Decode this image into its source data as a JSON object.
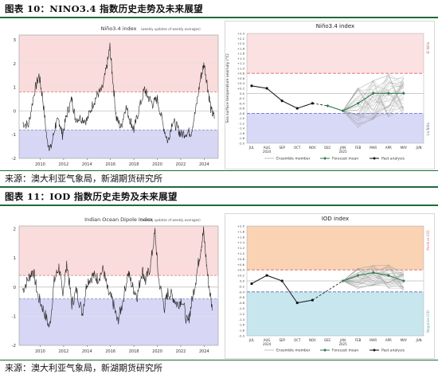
{
  "figures": [
    {
      "caption": "图表 10：NINO3.4 指数历史走势及未来展望",
      "source": "来源：澳大利亚气象局，新湖期货研究所",
      "left_chart": {
        "title": "Niño3.4 index",
        "subtitle": "(weekly updates of weekly averages)",
        "yticks": [
          "3",
          "2",
          "1",
          "0",
          "-1",
          "-2"
        ],
        "xticks": [
          "2010",
          "2012",
          "2014",
          "2016",
          "2018",
          "2020",
          "2022",
          "2024"
        ]
      },
      "right_chart": {
        "title": "Niño3.4 index",
        "ylabel": "Sea surface temperature anomaly (°C)",
        "yticks": [
          "+2.4",
          "+2.2",
          "+2.0",
          "+1.8",
          "+1.6",
          "+1.4",
          "+1.2",
          "+1.0",
          "+0.8",
          "+0.6",
          "+0.4",
          "+0.2",
          "0.0",
          "-0.2",
          "-0.4",
          "-0.6",
          "-0.8",
          "-1.0",
          "-1.2",
          "-1.4",
          "-1.6",
          "-1.8",
          "-2.0"
        ],
        "xticks": [
          "JUL",
          "AUG",
          "SEP",
          "OCT",
          "NOV",
          "DEC",
          "JAN",
          "FEB",
          "MAR",
          "APR",
          "MAY",
          "JUN"
        ],
        "year_labels": [
          {
            "under": "AUG",
            "text": "2024"
          },
          {
            "under": "JAN",
            "text": "2025"
          }
        ],
        "side_top": "El Niño",
        "side_bottom": "La Niña",
        "legend": [
          "Ensemble member",
          "Forecast mean",
          "Past analysis"
        ]
      }
    },
    {
      "caption": "图表 11：IOD 指数历史走势及未来展望",
      "source": "来源：澳大利亚气象局，新湖期货研究所",
      "left_chart": {
        "title": "Indian Ocean Dipole Index",
        "subtitle": "(weekly updates of weekly averages)",
        "yticks": [
          "2",
          "1",
          "0",
          "-1",
          "-2"
        ],
        "xticks": [
          "2010",
          "2012",
          "2014",
          "2016",
          "2018",
          "2020",
          "2022",
          "2024"
        ]
      },
      "right_chart": {
        "title": "IOD index",
        "ylabel": "",
        "yticks": [
          "+2.0",
          "+1.8",
          "+1.6",
          "+1.4",
          "+1.2",
          "+1.0",
          "+0.8",
          "+0.6",
          "+0.4",
          "+0.2",
          "0.0",
          "-0.2",
          "-0.4",
          "-0.6",
          "-0.8",
          "-1.0",
          "-1.2",
          "-1.4",
          "-1.6",
          "-1.8",
          "-2.0"
        ],
        "xticks": [
          "JUL",
          "AUG",
          "SEP",
          "OCT",
          "NOV",
          "DEC",
          "JAN",
          "FEB",
          "MAR",
          "APR",
          "MAY",
          "JUN"
        ],
        "year_labels": [
          {
            "under": "AUG",
            "text": "2024"
          },
          {
            "under": "JAN",
            "text": "2025"
          }
        ],
        "side_top": "Positive IOD",
        "side_bottom": "Negative IOD",
        "legend": [
          "Ensemble member",
          "Forecast mean",
          "Past analysis"
        ]
      }
    }
  ],
  "chart_data": [
    {
      "type": "line",
      "title": "Niño3.4 index",
      "subtitle": "(weekly updates of weekly averages)",
      "xlim": [
        2008.2,
        2025.2
      ],
      "ylim": [
        -2,
        3.2
      ],
      "thresholds": [
        0.8,
        -0.8
      ],
      "x": [
        2008.5,
        2009.0,
        2009.5,
        2009.9,
        2010.2,
        2010.6,
        2010.9,
        2011.3,
        2011.6,
        2011.9,
        2012.3,
        2012.7,
        2013.0,
        2013.5,
        2014.0,
        2014.5,
        2014.9,
        2015.3,
        2015.7,
        2015.95,
        2016.2,
        2016.5,
        2016.9,
        2017.3,
        2017.7,
        2018.0,
        2018.4,
        2018.9,
        2019.2,
        2019.6,
        2020.0,
        2020.5,
        2020.9,
        2021.3,
        2021.7,
        2022.0,
        2022.5,
        2022.9,
        2023.3,
        2023.7,
        2024.0,
        2024.3,
        2024.6,
        2024.9
      ],
      "values": [
        -0.5,
        -0.6,
        0.8,
        1.5,
        0.6,
        -1.3,
        -1.6,
        -0.6,
        -0.4,
        -1.0,
        -0.1,
        0.5,
        -0.3,
        -0.3,
        -0.4,
        0.3,
        0.7,
        0.9,
        1.9,
        2.7,
        1.3,
        -0.3,
        -0.7,
        0.2,
        -0.4,
        -0.8,
        0.0,
        0.9,
        0.6,
        0.3,
        0.5,
        -0.6,
        -1.3,
        -0.4,
        -0.7,
        -1.0,
        -0.9,
        -0.9,
        0.1,
        1.4,
        2.0,
        1.0,
        0.0,
        -0.3
      ],
      "series_color": "#222222"
    },
    {
      "type": "line",
      "title": "Niño3.4 index",
      "ylabel": "Sea surface temperature anomaly (°C)",
      "ylim": [
        -2.0,
        2.4
      ],
      "thresholds": [
        0.8,
        -0.8
      ],
      "categories": [
        "JUL",
        "AUG",
        "SEP",
        "OCT",
        "NOV",
        "DEC",
        "JAN",
        "FEB",
        "MAR",
        "APR",
        "MAY",
        "JUN"
      ],
      "series": [
        {
          "name": "Past analysis",
          "x": [
            0,
            1,
            2,
            3,
            4
          ],
          "values": [
            0.3,
            0.2,
            -0.3,
            -0.6,
            -0.4
          ],
          "color": "#111111"
        },
        {
          "name": "Forecast mean",
          "x": [
            5,
            6,
            7,
            8,
            9,
            10
          ],
          "values": [
            -0.5,
            -0.7,
            -0.4,
            0.0,
            0.0,
            0.0
          ],
          "color": "#2e7d4f"
        }
      ],
      "ensemble_spread": {
        "x": [
          6,
          7,
          8,
          9,
          10
        ],
        "low": [
          -1.3,
          -1.4,
          -1.1,
          -1.0,
          -0.9
        ],
        "high": [
          0.1,
          0.3,
          0.6,
          0.8,
          0.9
        ]
      }
    },
    {
      "type": "line",
      "title": "Indian Ocean Dipole Index",
      "subtitle": "(weekly updates of weekly averages)",
      "xlim": [
        2008.2,
        2025.2
      ],
      "ylim": [
        -2,
        2.1
      ],
      "thresholds": [
        0.4,
        -0.4
      ],
      "x": [
        2008.5,
        2009.0,
        2009.4,
        2009.8,
        2010.3,
        2010.8,
        2011.2,
        2011.6,
        2011.9,
        2012.3,
        2012.7,
        2013.1,
        2013.6,
        2014.0,
        2014.5,
        2014.9,
        2015.4,
        2015.8,
        2016.2,
        2016.6,
        2017.0,
        2017.5,
        2017.9,
        2018.3,
        2018.7,
        2019.0,
        2019.4,
        2019.8,
        2020.1,
        2020.6,
        2020.9,
        2021.3,
        2021.7,
        2022.1,
        2022.6,
        2022.9,
        2023.3,
        2023.7,
        2023.95,
        2024.3,
        2024.7
      ],
      "values": [
        -0.1,
        0.3,
        0.6,
        -0.3,
        -0.8,
        -1.4,
        0.2,
        0.7,
        -0.2,
        0.8,
        -0.6,
        -0.1,
        -0.9,
        0.2,
        0.4,
        0.3,
        0.6,
        -0.2,
        -0.5,
        -1.2,
        -0.6,
        0.5,
        0.0,
        -0.3,
        0.6,
        0.2,
        0.7,
        1.9,
        0.3,
        -0.7,
        -0.2,
        -0.3,
        -0.6,
        -0.4,
        -1.3,
        -0.6,
        0.3,
        1.3,
        1.9,
        0.4,
        -0.8
      ],
      "series_color": "#222222"
    },
    {
      "type": "line",
      "title": "IOD index",
      "ylim": [
        -2.0,
        2.0
      ],
      "thresholds": [
        0.4,
        -0.4
      ],
      "categories": [
        "JUL",
        "AUG",
        "SEP",
        "OCT",
        "NOV",
        "DEC",
        "JAN",
        "FEB",
        "MAR",
        "APR",
        "MAY",
        "JUN"
      ],
      "series": [
        {
          "name": "Past analysis",
          "x": [
            0,
            1,
            2,
            3,
            4
          ],
          "values": [
            -0.1,
            0.2,
            0.0,
            -0.8,
            -0.7
          ],
          "color": "#111111"
        },
        {
          "name": "Forecast mean",
          "x": [
            6,
            7,
            8,
            9,
            10
          ],
          "values": [
            0.0,
            0.2,
            0.3,
            0.2,
            0.0
          ],
          "color": "#2e7d4f"
        }
      ],
      "ensemble_spread": {
        "x": [
          6,
          7,
          8,
          9,
          10
        ],
        "low": [
          -0.6,
          -0.3,
          -0.2,
          -0.3,
          -0.4
        ],
        "high": [
          0.3,
          0.5,
          0.6,
          0.6,
          0.5
        ]
      }
    }
  ]
}
